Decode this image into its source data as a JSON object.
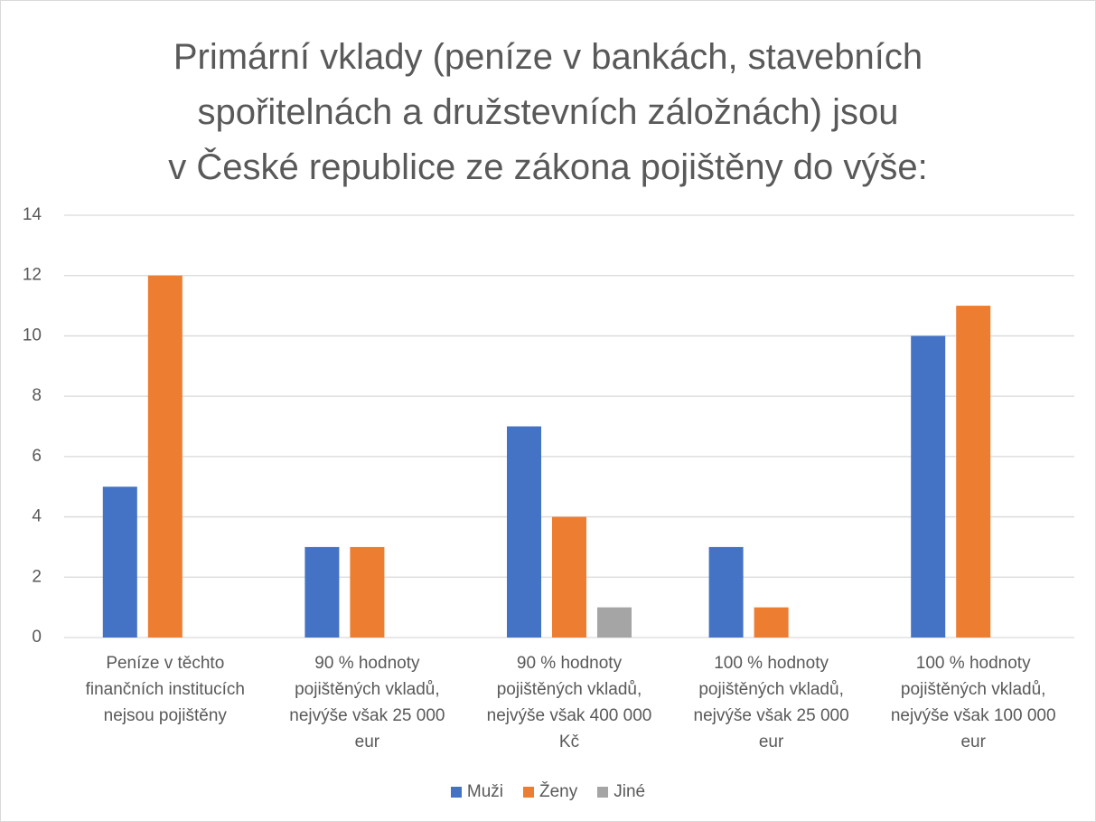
{
  "chart_data": {
    "type": "bar",
    "title": "Primární vklady (peníze v bankách, stavebních\nspořitelnách a družstevních záložnách) jsou\nv České republice ze zákona pojištěny do výše:",
    "categories": [
      "Peníze v těchto finančních institucích nejsou pojištěny",
      "90 % hodnoty pojištěných vkladů, nejvýše však 25 000 eur",
      "90 % hodnoty pojištěných vkladů, nejvýše však 400 000 Kč",
      "100 % hodnoty pojištěných vkladů, nejvýše však 25 000 eur",
      "100 % hodnoty pojištěných vkladů, nejvýše však 100 000 eur"
    ],
    "series": [
      {
        "name": "Muži",
        "color": "#4472c4",
        "values": [
          5,
          3,
          7,
          3,
          10
        ]
      },
      {
        "name": "Ženy",
        "color": "#ed7d31",
        "values": [
          12,
          3,
          4,
          1,
          11
        ]
      },
      {
        "name": "Jiné",
        "color": "#a5a5a5",
        "values": [
          0,
          0,
          1,
          0,
          0
        ]
      }
    ],
    "ylim": [
      0,
      14
    ],
    "yticks": [
      0,
      2,
      4,
      6,
      8,
      10,
      12,
      14
    ],
    "grid": true,
    "legend": "bottom"
  }
}
